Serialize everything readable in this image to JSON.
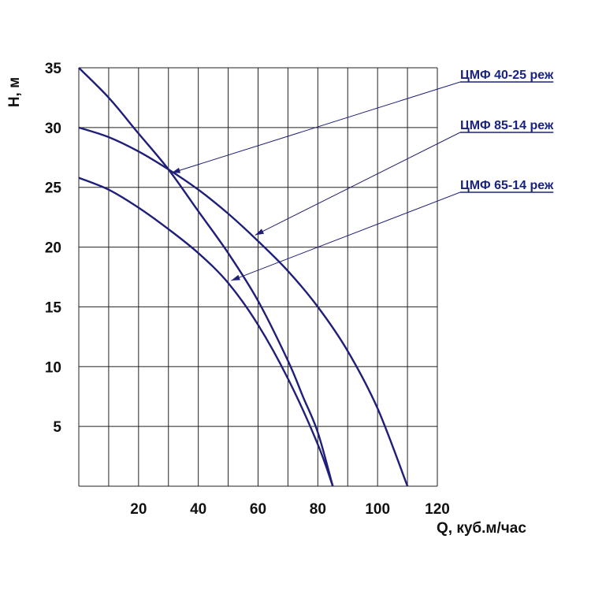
{
  "chart_data": {
    "type": "line",
    "xlabel": "Q, куб.м/час",
    "ylabel": "H, м",
    "xlim": [
      0,
      120
    ],
    "ylim": [
      0,
      35
    ],
    "x_ticks": [
      20,
      40,
      60,
      80,
      100,
      120
    ],
    "y_ticks": [
      5,
      10,
      15,
      20,
      25,
      30,
      35
    ],
    "grid": true,
    "series": [
      {
        "name": "ЦМФ 40-25 реж",
        "x": [
          0,
          10,
          20,
          30,
          40,
          50,
          60,
          70,
          75,
          80,
          85
        ],
        "y": [
          35,
          32.5,
          29.5,
          26.5,
          23,
          19.5,
          15.5,
          10.5,
          7.5,
          4.5,
          0
        ]
      },
      {
        "name": "ЦМФ 85-14 реж",
        "x": [
          0,
          10,
          20,
          30,
          40,
          50,
          60,
          70,
          80,
          90,
          100,
          110
        ],
        "y": [
          30,
          29.2,
          28,
          26.5,
          24.8,
          22.8,
          20.5,
          18,
          15,
          11.3,
          6.5,
          0
        ]
      },
      {
        "name": "ЦМФ 65-14 реж",
        "x": [
          0,
          10,
          20,
          30,
          40,
          50,
          60,
          70,
          80,
          85
        ],
        "y": [
          25.8,
          24.8,
          23.3,
          21.5,
          19.5,
          17,
          13.5,
          9,
          3.5,
          0
        ]
      }
    ],
    "annotations": [
      {
        "label": "ЦМФ 40-25 реж",
        "points_to": [
          31,
          26.2
        ]
      },
      {
        "label": "ЦМФ 85-14 реж",
        "points_to": [
          59,
          21
        ]
      },
      {
        "label": "ЦМФ 65-14 реж",
        "points_to": [
          51,
          17.2
        ]
      }
    ]
  }
}
